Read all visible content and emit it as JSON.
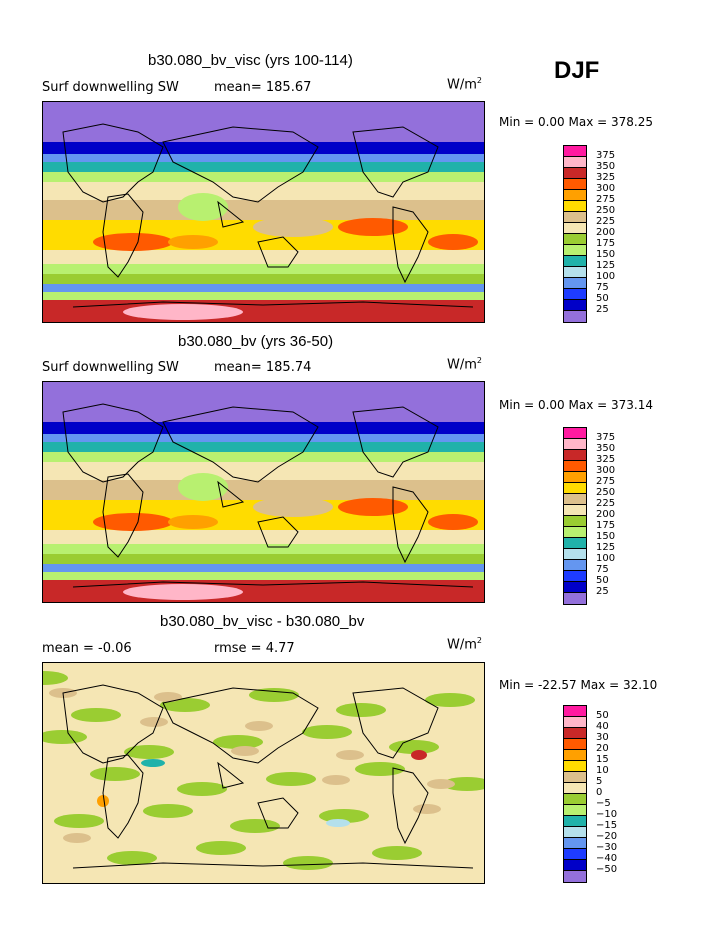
{
  "season": "DJF",
  "units_prefix": "W/m",
  "units_sup": "2",
  "panels": [
    {
      "title": "b30.080_bv_visc (yrs 100-114)",
      "left_label": "Surf downwelling SW",
      "mid_label": "mean= 185.67",
      "minmax": "Min =    0.00 Max = 378.25",
      "map_kind": "sw"
    },
    {
      "title": "b30.080_bv (yrs 36-50)",
      "left_label": "Surf downwelling SW",
      "mid_label": "mean= 185.74",
      "minmax": "Min =    0.00 Max = 373.14",
      "map_kind": "sw"
    },
    {
      "title": "b30.080_bv_visc - b30.080_bv",
      "left_label": "mean =   -0.06",
      "mid_label": "rmse =    4.77",
      "minmax": "Min = -22.57 Max =  32.10",
      "map_kind": "diff"
    }
  ],
  "colorbars": {
    "sw": {
      "labels": [
        "375",
        "350",
        "325",
        "300",
        "275",
        "250",
        "225",
        "200",
        "175",
        "150",
        "125",
        "100",
        "75",
        "50",
        "25"
      ],
      "colors": [
        "#ff1aa0",
        "#ffb6c8",
        "#c82828",
        "#ff5a00",
        "#ffa000",
        "#ffdc00",
        "#dcc08c",
        "#f5e6b4",
        "#9acd32",
        "#b8f070",
        "#20b2aa",
        "#b4e0ec",
        "#6496f0",
        "#1e3cff",
        "#0000c8",
        "#9370db"
      ]
    },
    "diff": {
      "labels": [
        "50",
        "40",
        "30",
        "20",
        "15",
        "10",
        "5",
        "0",
        "−5",
        "−10",
        "−15",
        "−20",
        "−30",
        "−40",
        "−50"
      ],
      "colors": [
        "#ff1aa0",
        "#ffb6c8",
        "#c82828",
        "#ff5a00",
        "#ffa000",
        "#ffdc00",
        "#dcc08c",
        "#f5e6b4",
        "#9acd32",
        "#b8f070",
        "#20b2aa",
        "#b4e0ec",
        "#6496f0",
        "#1e3cff",
        "#0000c8",
        "#9370db"
      ]
    }
  }
}
